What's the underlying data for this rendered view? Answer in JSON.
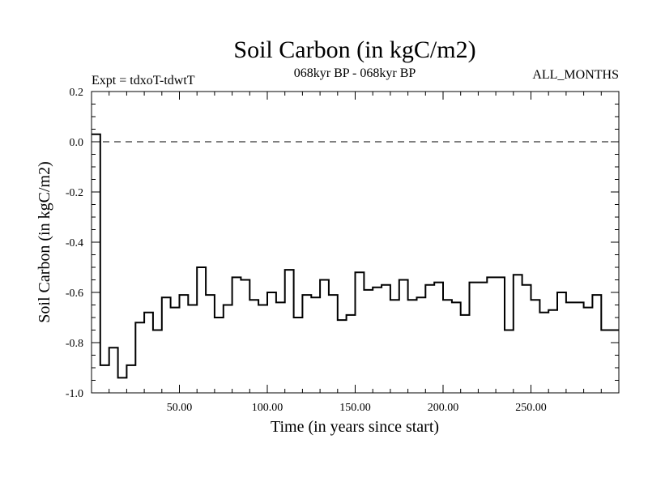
{
  "chart_data": {
    "type": "line",
    "step": true,
    "title": "Soil Carbon (in kgC/m2)",
    "subtitle_left": "Expt = tdxoT-tdwtT",
    "subtitle_center": "068kyr BP - 068kyr BP",
    "subtitle_right": "ALL_MONTHS",
    "xlabel": "Time (in years since start)",
    "ylabel": "Soil Carbon (in kgC/m2)",
    "xlim": [
      0,
      300
    ],
    "ylim": [
      -1.0,
      0.2
    ],
    "xticks": [
      50,
      100,
      150,
      200,
      250
    ],
    "xtick_labels": [
      "50.00",
      "100.00",
      "150.00",
      "200.00",
      "250.00"
    ],
    "yticks": [
      -1.0,
      -0.8,
      -0.6,
      -0.4,
      -0.2,
      0.0,
      0.2
    ],
    "ytick_labels": [
      "-1.0",
      "-0.8",
      "-0.6",
      "-0.4",
      "-0.2",
      "0.0",
      "0.2"
    ],
    "reference_line": {
      "y": 0.0,
      "style": "dashed"
    },
    "series": [
      {
        "step_width": 5,
        "x": [
          0,
          5,
          10,
          15,
          20,
          25,
          30,
          35,
          40,
          45,
          50,
          55,
          60,
          65,
          70,
          75,
          80,
          85,
          90,
          95,
          100,
          105,
          110,
          115,
          120,
          125,
          130,
          135,
          140,
          145,
          150,
          155,
          160,
          165,
          170,
          175,
          180,
          185,
          190,
          195,
          200,
          205,
          210,
          215,
          220,
          225,
          230,
          235,
          240,
          245,
          250,
          255,
          260,
          265,
          270,
          275,
          280,
          285,
          290,
          295
        ],
        "values": [
          0.03,
          -0.89,
          -0.82,
          -0.94,
          -0.89,
          -0.72,
          -0.68,
          -0.75,
          -0.62,
          -0.66,
          -0.61,
          -0.65,
          -0.5,
          -0.61,
          -0.7,
          -0.65,
          -0.54,
          -0.55,
          -0.63,
          -0.65,
          -0.6,
          -0.64,
          -0.51,
          -0.7,
          -0.61,
          -0.62,
          -0.55,
          -0.61,
          -0.71,
          -0.69,
          -0.52,
          -0.59,
          -0.58,
          -0.57,
          -0.63,
          -0.55,
          -0.63,
          -0.62,
          -0.57,
          -0.56,
          -0.63,
          -0.64,
          -0.69,
          -0.56,
          -0.56,
          -0.54,
          -0.54,
          -0.75,
          -0.53,
          -0.57,
          -0.63,
          -0.68,
          -0.67,
          -0.6,
          -0.64,
          -0.64,
          -0.66,
          -0.61,
          -0.75,
          -0.75
        ]
      }
    ]
  }
}
